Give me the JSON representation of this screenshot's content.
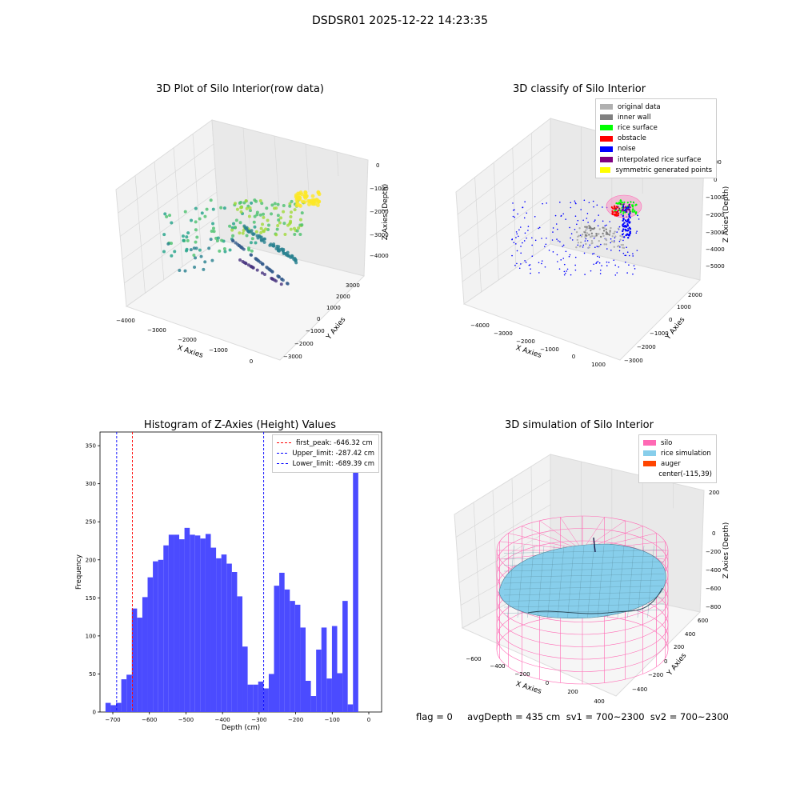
{
  "suptitle": "DSDSR01 2025-12-22 14:23:35",
  "footer": {
    "text": "flag = 0     avgDepth = 435 cm  sv1 = 700~2300  sv2 = 700~2300"
  },
  "colors": {
    "hist_bar": "#4b4bff",
    "first_peak_line": "#ff0000",
    "limit_line": "#0000ff",
    "silo_mesh": "#ff69b4",
    "rice_surface": "#87ceeb",
    "auger": "#ff4500"
  },
  "chart_data": [
    {
      "type": "scatter",
      "projection": "3d",
      "title": "3D Plot of Silo Interior(row data)",
      "xlabel": "X Axies",
      "ylabel": "Y Axies",
      "zlabel": "Z Axies (Depth)",
      "x_ticks": [
        "−4000",
        "−3000",
        "−2000",
        "−1000",
        "0"
      ],
      "y_ticks": [
        "−3000",
        "−2000",
        "−1000",
        "0",
        "1000",
        "2000",
        "3000"
      ],
      "z_ticks": [
        "0",
        "−1000",
        "−2000",
        "−3000",
        "−4000"
      ],
      "colormap": "viridis",
      "grid": true
    },
    {
      "type": "scatter",
      "projection": "3d",
      "title": "3D classify of Silo Interior",
      "xlabel": "X Axies",
      "ylabel": "Y Axies",
      "zlabel": "Z Axies (Depth)",
      "x_ticks": [
        "−4000",
        "−3000",
        "−2000",
        "−1000",
        "0",
        "1000"
      ],
      "y_ticks": [
        "−3000",
        "−2000",
        "−1000",
        "0",
        "1000",
        "2000"
      ],
      "z_ticks": [
        "1000",
        "0",
        "−1000",
        "−2000",
        "−3000",
        "−4000",
        "−5000"
      ],
      "legend": [
        {
          "label": "original data",
          "color": "#b0b0b0"
        },
        {
          "label": "inner wall",
          "color": "#808080"
        },
        {
          "label": "rice surface",
          "color": "#00ff00"
        },
        {
          "label": "obstacle",
          "color": "#ff0000"
        },
        {
          "label": "noise",
          "color": "#0000ff"
        },
        {
          "label": "interpolated rice surface",
          "color": "#800080"
        },
        {
          "label": "symmetric generated points",
          "color": "#ffff00"
        }
      ],
      "legend_loc": "upper right",
      "grid": true
    },
    {
      "type": "bar",
      "title": "Histogram of Z-Axies (Height) Values",
      "xlabel": "Depth (cm)",
      "ylabel": "Frequency",
      "xlim": [
        -735,
        35
      ],
      "ylim": [
        0,
        368
      ],
      "x_ticks": [
        -700,
        -600,
        -500,
        -400,
        -300,
        -200,
        -100,
        0
      ],
      "y_ticks": [
        0,
        50,
        100,
        150,
        200,
        250,
        300,
        350
      ],
      "bin_start": -720,
      "bin_width": 14.4,
      "values": [
        12,
        9,
        12,
        43,
        49,
        136,
        124,
        151,
        177,
        198,
        200,
        219,
        233,
        233,
        227,
        242,
        233,
        232,
        228,
        234,
        216,
        202,
        207,
        195,
        184,
        152,
        86,
        36,
        36,
        40,
        31,
        50,
        166,
        183,
        161,
        146,
        141,
        111,
        41,
        21,
        82,
        111,
        44,
        113,
        51,
        146,
        10,
        350
      ],
      "vlines": [
        {
          "label": "first_peak: -646.32 cm",
          "x": -646.32,
          "color": "#ff0000"
        },
        {
          "label": "Upper_limit: -287.42 cm",
          "x": -287.42,
          "color": "#0000ff"
        },
        {
          "label": "Lower_limit: -689.39 cm",
          "x": -689.39,
          "color": "#0000ff"
        }
      ],
      "legend_loc": "upper right",
      "grid": false
    },
    {
      "type": "surface",
      "projection": "3d",
      "title": "3D simulation of Silo Interior",
      "xlabel": "X Axies",
      "ylabel": "Y Axies",
      "zlabel": "Z Axies (Depth)",
      "x_ticks": [
        "−600",
        "−400",
        "−200",
        "0",
        "200",
        "400"
      ],
      "y_ticks": [
        "−400",
        "−200",
        "0",
        "200",
        "400",
        "600"
      ],
      "z_ticks": [
        "200",
        "0",
        "−200",
        "−400",
        "−600",
        "−800"
      ],
      "legend": [
        {
          "label": "silo",
          "color": "#ff69b4"
        },
        {
          "label": "rice simulation",
          "color": "#87ceeb"
        },
        {
          "label": "auger",
          "color": "#ff4500"
        },
        {
          "label": "center(-115,39)",
          "color": ""
        }
      ],
      "legend_loc": "upper right",
      "grid": true
    }
  ]
}
